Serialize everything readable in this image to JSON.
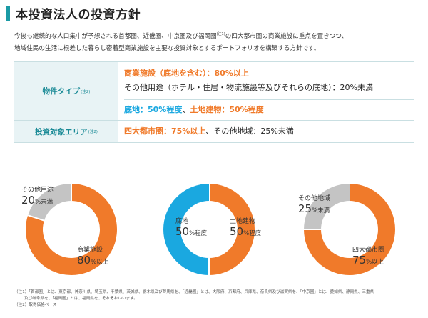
{
  "title": "本投資法人の投資方針",
  "intro": {
    "line1_a": "今後も継続的な人口集中が予想される首都圏、近畿圏、中京圏及び福岡圏",
    "line1_sup": "(注1)",
    "line1_b": "の四大都市圏の商業施設に重点を置きつつ、",
    "line2": "地域住民の生活に根差した暮らし密着型商業施設を主要な投資対象とするポートフォリオを構築する方針です。"
  },
  "table": {
    "property_type": {
      "label": "物件タイプ",
      "note": "(注2)",
      "line1": "商業施設（底地を含む）：80%以上",
      "line2": "その他用途（ホテル・住居・物流施設等及びそれらの底地）：20%未満",
      "line3_a": "底地：50%程度",
      "line3_sep": "、",
      "line3_b": "土地建物：50%程度"
    },
    "target_area": {
      "label": "投資対象エリア",
      "note": "(注2)",
      "line_a": "四大都市圏：75%以上",
      "line_b": "、その他地域：25%未満"
    }
  },
  "charts": [
    {
      "slices": [
        {
          "name": "商業施設",
          "pct": "80",
          "unit": "%以上",
          "value": 80,
          "color": "#f07a2a"
        },
        {
          "name": "その他用途",
          "pct": "20",
          "unit": "%未満",
          "value": 20,
          "color": "#c4c4c4"
        }
      ]
    },
    {
      "slices": [
        {
          "name": "土地建物",
          "pct": "50",
          "unit": "%程度",
          "value": 50,
          "color": "#f07a2a"
        },
        {
          "name": "底地",
          "pct": "50",
          "unit": "%程度",
          "value": 50,
          "color": "#1aa8e0"
        }
      ]
    },
    {
      "slices": [
        {
          "name": "四大都市圏",
          "pct": "75",
          "unit": "%以上",
          "value": 75,
          "color": "#f07a2a"
        },
        {
          "name": "その他地域",
          "pct": "25",
          "unit": "%未満",
          "value": 25,
          "color": "#c4c4c4"
        }
      ]
    }
  ],
  "notes": {
    "note1": "（注1）「首都圏」とは、東京都、神奈川県、埼玉県、千葉県、茨城県、栃木県及び群馬県を、「近畿圏」とは、大阪府、京都府、兵庫県、奈良県及び滋賀県を、「中京圏」とは、愛知県、静岡県、三重県",
    "note1_cont": "及び岐阜県を、「福岡圏」とは、福岡県を、それぞれいいます。",
    "note2": "（注2）取得価格ベース"
  }
}
